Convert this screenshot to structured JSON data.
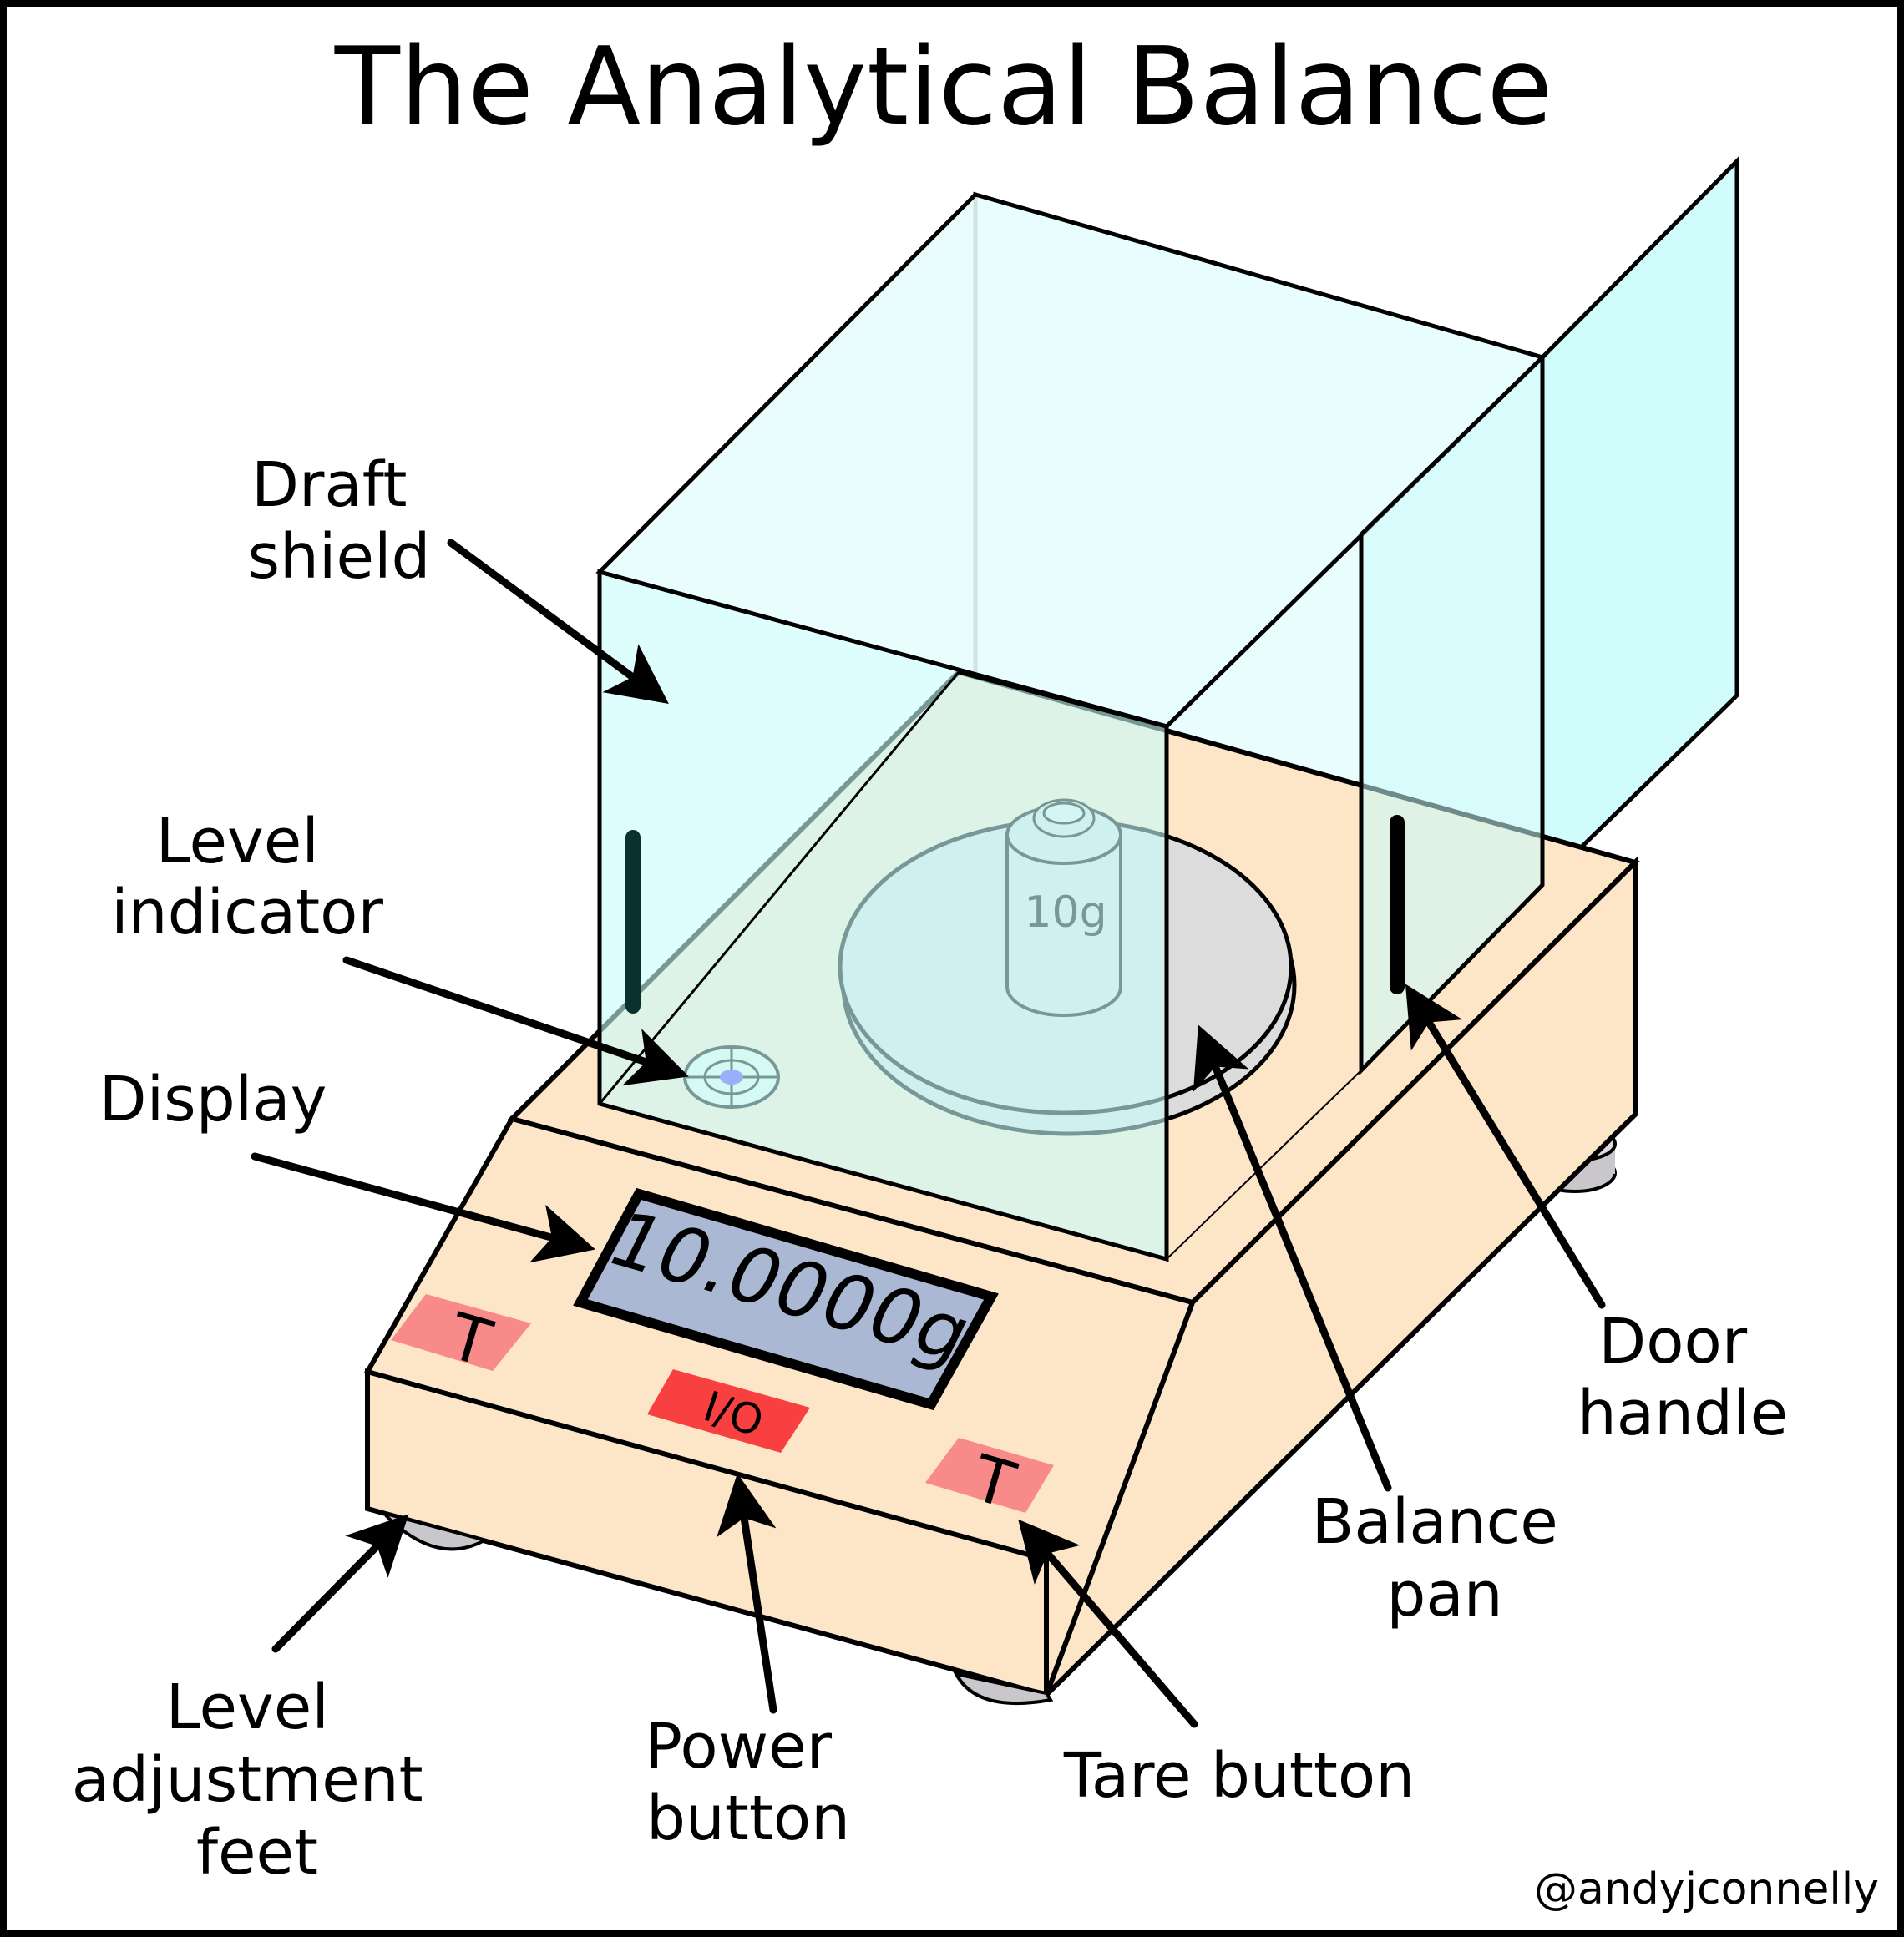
{
  "title": "The Analytical Balance",
  "credit": "@andyjconnelly",
  "display_reading": "10.0000g",
  "weight_label": "10g",
  "buttons": {
    "tare_left": "T",
    "tare_right": "T",
    "power": "I/O"
  },
  "labels": {
    "draft_shield": [
      "Draft",
      "shield"
    ],
    "level_indicator": [
      "Level",
      "indicator"
    ],
    "display": [
      "Display"
    ],
    "door_handle": [
      "Door",
      "handle"
    ],
    "balance_pan": [
      "Balance",
      "pan"
    ],
    "level_feet": [
      "Level",
      "adjustment",
      "feet"
    ],
    "power_button": [
      "Power",
      "button"
    ],
    "tare_button": [
      "Tare button"
    ]
  },
  "colors": {
    "body": "#fde6c8",
    "glass": "#c8fbfb",
    "glass_light": "#e8fdfd",
    "display_screen": "#aab8d4",
    "tare_button": "#f88a8a",
    "power_button": "#f84040",
    "pan": "#dcdcdc",
    "level_bubble": "#5040f0"
  }
}
